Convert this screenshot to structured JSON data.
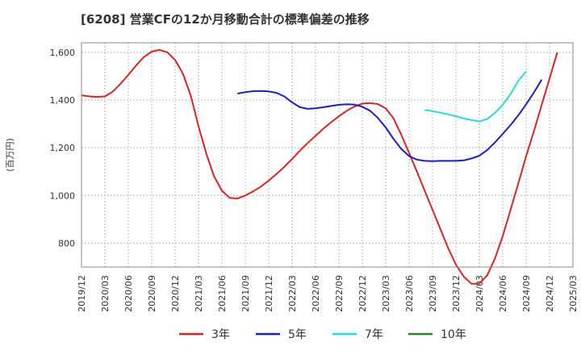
{
  "chart_data": {
    "type": "line",
    "title": "[6208]  営業CFの12か月移動合計の標準偏差の推移",
    "ylabel": "(百万円)",
    "xlabel": "",
    "ylim": [
      700,
      1640
    ],
    "yticks": [
      800,
      1000,
      1200,
      1400,
      1600
    ],
    "ytick_labels": [
      "800",
      "1,000",
      "1,200",
      "1,400",
      "1,600"
    ],
    "x_ticks": [
      "2019/12",
      "2020/03",
      "2020/06",
      "2020/09",
      "2020/12",
      "2021/03",
      "2021/06",
      "2021/09",
      "2021/12",
      "2022/03",
      "2022/06",
      "2022/09",
      "2022/12",
      "2023/03",
      "2023/06",
      "2023/09",
      "2023/12",
      "2024/03",
      "2024/06",
      "2024/09",
      "2024/12",
      "2025/03"
    ],
    "grid": true,
    "legend_position": "bottom",
    "series": [
      {
        "name": "3年",
        "color": "#dd2222",
        "start_month": "2019/12",
        "values": [
          1420,
          1415,
          1413,
          1415,
          1435,
          1468,
          1505,
          1545,
          1580,
          1603,
          1610,
          1600,
          1568,
          1510,
          1420,
          1290,
          1175,
          1080,
          1020,
          990,
          987,
          1000,
          1017,
          1037,
          1062,
          1090,
          1120,
          1153,
          1188,
          1220,
          1250,
          1280,
          1307,
          1332,
          1355,
          1373,
          1385,
          1387,
          1383,
          1365,
          1323,
          1255,
          1178,
          1100,
          1020,
          940,
          860,
          780,
          710,
          660,
          630,
          630,
          665,
          735,
          830,
          940,
          1050,
          1165,
          1270,
          1380,
          1490,
          1600
        ]
      },
      {
        "name": "5年",
        "color": "#1c1ccc",
        "start_month": "2021/08",
        "values": [
          1427,
          1433,
          1437,
          1438,
          1436,
          1430,
          1415,
          1390,
          1370,
          1363,
          1365,
          1370,
          1375,
          1380,
          1382,
          1381,
          1372,
          1355,
          1325,
          1285,
          1237,
          1195,
          1165,
          1150,
          1145,
          1144,
          1145,
          1145,
          1145,
          1147,
          1155,
          1167,
          1190,
          1222,
          1258,
          1295,
          1336,
          1382,
          1432,
          1485
        ]
      },
      {
        "name": "7年",
        "color": "#22dddd",
        "start_month": "2023/08",
        "values": [
          1358,
          1354,
          1347,
          1340,
          1332,
          1323,
          1316,
          1310,
          1320,
          1345,
          1380,
          1425,
          1480,
          1520
        ]
      },
      {
        "name": "10年",
        "color": "#228822",
        "start_month": "",
        "values": []
      }
    ]
  }
}
